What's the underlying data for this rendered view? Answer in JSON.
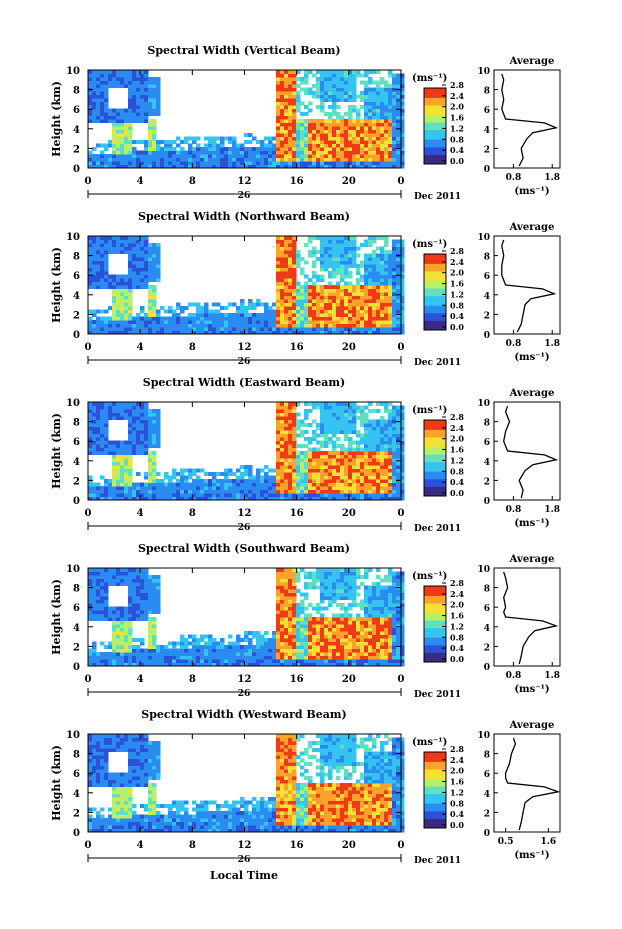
{
  "figure": {
    "xlabel": "Local Time",
    "date_suffix": "Dec 2011",
    "day_label": "26",
    "colorbar_unit": "(ms⁻¹)",
    "colorbar_ticks": [
      "0.0",
      "0.4",
      "0.8",
      "1.2",
      "1.6",
      "2.0",
      "2.4",
      "2.8"
    ],
    "avg_title": "Average",
    "avg_xlabel": "(ms⁻¹)"
  },
  "chart_data": [
    {
      "type": "heatmap",
      "title": "Spectral Width (Vertical Beam)",
      "xlabel": "Local Time",
      "ylabel": "Height (km)",
      "xlim": [
        0,
        24
      ],
      "ylim": [
        0,
        10
      ],
      "x_ticks": [
        "0",
        "4",
        "8",
        "12",
        "16",
        "20",
        "0"
      ],
      "y_ticks": [
        "0",
        "2",
        "4",
        "6",
        "8",
        "10"
      ],
      "colorbar": {
        "label": "(ms⁻¹)",
        "range": [
          0.0,
          2.8
        ],
        "ticks": [
          "0.0",
          "0.4",
          "0.8",
          "1.2",
          "1.6",
          "2.0",
          "2.4",
          "2.8"
        ]
      },
      "average_profile": {
        "title": "Average",
        "xlabel": "(ms⁻¹)",
        "x_ticks": [
          "0.8",
          "1.8"
        ],
        "xlim": [
          0.3,
          2.0
        ],
        "height_km": [
          0.2,
          1,
          2,
          3,
          3.6,
          4.1,
          4.6,
          5.0,
          5.5,
          6,
          7,
          8,
          9,
          9.6
        ],
        "width": [
          0.95,
          1.05,
          1.0,
          1.15,
          1.3,
          1.9,
          1.6,
          0.6,
          0.55,
          0.5,
          0.55,
          0.5,
          0.55,
          0.5
        ]
      }
    },
    {
      "type": "heatmap",
      "title": "Spectral Width (Northward Beam)",
      "xlabel": "Local Time",
      "ylabel": "Height (km)",
      "xlim": [
        0,
        24
      ],
      "ylim": [
        0,
        10
      ],
      "x_ticks": [
        "0",
        "4",
        "8",
        "12",
        "16",
        "20",
        "0"
      ],
      "y_ticks": [
        "0",
        "2",
        "4",
        "6",
        "8",
        "10"
      ],
      "colorbar": {
        "label": "(ms⁻¹)",
        "range": [
          0.0,
          2.8
        ],
        "ticks": [
          "0.0",
          "0.4",
          "0.8",
          "1.2",
          "1.6",
          "2.0",
          "2.4",
          "2.8"
        ]
      },
      "average_profile": {
        "title": "Average",
        "xlabel": "(ms⁻¹)",
        "x_ticks": [
          "0.8",
          "1.8"
        ],
        "xlim": [
          0.3,
          2.0
        ],
        "height_km": [
          0.2,
          1,
          2,
          3,
          3.6,
          4.1,
          4.6,
          5.0,
          5.5,
          6,
          7,
          8,
          9,
          9.6
        ],
        "width": [
          0.9,
          1.0,
          1.05,
          1.1,
          1.25,
          1.85,
          1.55,
          0.6,
          0.55,
          0.5,
          0.5,
          0.55,
          0.5,
          0.55
        ]
      }
    },
    {
      "type": "heatmap",
      "title": "Spectral Width (Eastward Beam)",
      "xlabel": "Local Time",
      "ylabel": "Height (km)",
      "xlim": [
        0,
        24
      ],
      "ylim": [
        0,
        10
      ],
      "x_ticks": [
        "0",
        "4",
        "8",
        "12",
        "16",
        "20",
        "0"
      ],
      "y_ticks": [
        "0",
        "2",
        "4",
        "6",
        "8",
        "10"
      ],
      "colorbar": {
        "label": "(ms⁻¹)",
        "range": [
          0.0,
          2.8
        ],
        "ticks": [
          "0.0",
          "0.4",
          "0.8",
          "1.2",
          "1.6",
          "2.0",
          "2.4",
          "2.8"
        ]
      },
      "average_profile": {
        "title": "Average",
        "xlabel": "(ms⁻¹)",
        "x_ticks": [
          "0.8",
          "1.8"
        ],
        "xlim": [
          0.3,
          2.0
        ],
        "height_km": [
          0.2,
          1,
          2,
          3,
          3.6,
          4.1,
          4.6,
          5.0,
          5.5,
          6,
          7,
          8,
          9,
          9.6
        ],
        "width": [
          1.0,
          1.05,
          0.95,
          1.1,
          1.3,
          1.9,
          1.6,
          0.65,
          0.6,
          0.55,
          0.6,
          0.7,
          0.6,
          0.65
        ]
      }
    },
    {
      "type": "heatmap",
      "title": "Spectral Width (Southward Beam)",
      "xlabel": "Local Time",
      "ylabel": "Height (km)",
      "xlim": [
        0,
        24
      ],
      "ylim": [
        0,
        10
      ],
      "x_ticks": [
        "0",
        "4",
        "8",
        "12",
        "16",
        "20",
        "0"
      ],
      "y_ticks": [
        "0",
        "2",
        "4",
        "6",
        "8",
        "10"
      ],
      "colorbar": {
        "label": "(ms⁻¹)",
        "range": [
          0.0,
          2.8
        ],
        "ticks": [
          "0.0",
          "0.4",
          "0.8",
          "1.2",
          "1.6",
          "2.0",
          "2.4",
          "2.8"
        ]
      },
      "average_profile": {
        "title": "Average",
        "xlabel": "(ms⁻¹)",
        "x_ticks": [
          "0.8",
          "1.8"
        ],
        "xlim": [
          0.3,
          2.0
        ],
        "height_km": [
          0.2,
          1,
          2,
          3,
          3.6,
          4.1,
          4.6,
          5.0,
          5.5,
          6,
          7,
          8,
          9,
          9.6
        ],
        "width": [
          0.95,
          1.0,
          1.05,
          1.2,
          1.35,
          1.9,
          1.55,
          0.6,
          0.55,
          0.6,
          0.55,
          0.65,
          0.6,
          0.55
        ]
      }
    },
    {
      "type": "heatmap",
      "title": "Spectral Width (Westward Beam)",
      "xlabel": "Local Time",
      "ylabel": "Height (km)",
      "xlim": [
        0,
        24
      ],
      "ylim": [
        0,
        10
      ],
      "x_ticks": [
        "0",
        "4",
        "8",
        "12",
        "16",
        "20",
        "0"
      ],
      "y_ticks": [
        "0",
        "2",
        "4",
        "6",
        "8",
        "10"
      ],
      "colorbar": {
        "label": "(ms⁻¹)",
        "range": [
          0.0,
          2.8
        ],
        "ticks": [
          "0.0",
          "0.4",
          "0.8",
          "1.2",
          "1.6",
          "2.0",
          "2.4",
          "2.8"
        ]
      },
      "average_profile": {
        "title": "Average",
        "xlabel": "(ms⁻¹)",
        "x_ticks": [
          "0.5",
          "1.6"
        ],
        "xlim": [
          0.2,
          1.9
        ],
        "height_km": [
          0.2,
          1,
          2,
          3,
          3.6,
          4.1,
          4.6,
          5.0,
          5.5,
          6,
          7,
          8,
          9,
          9.6
        ],
        "width": [
          0.85,
          0.9,
          0.95,
          1.0,
          1.2,
          1.85,
          1.5,
          0.55,
          0.5,
          0.5,
          0.6,
          0.65,
          0.75,
          0.7
        ]
      }
    }
  ]
}
